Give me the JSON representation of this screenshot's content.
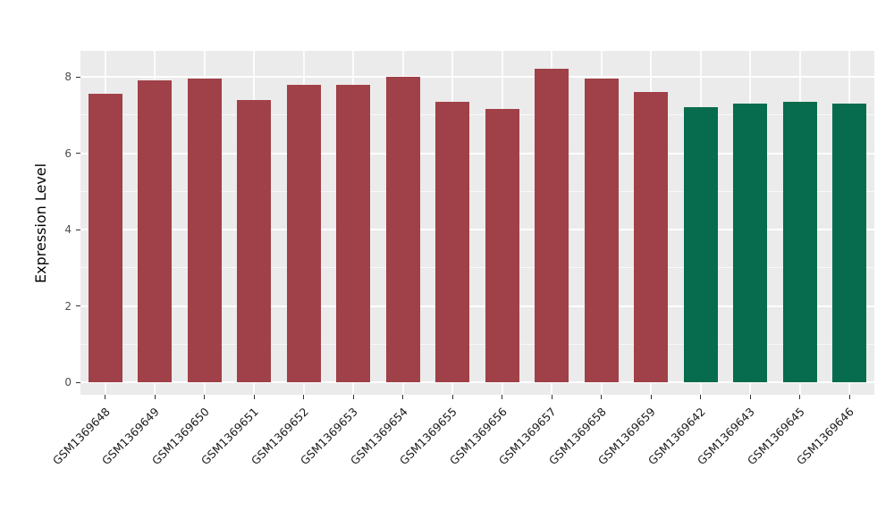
{
  "chart_data": {
    "type": "bar",
    "title": "",
    "xlabel": "",
    "ylabel": "Expression Level",
    "ylim": [
      0,
      8.7
    ],
    "yticks": [
      0,
      2,
      4,
      6,
      8
    ],
    "yticks_minor": [
      1,
      3,
      5,
      7
    ],
    "grid": "on",
    "legend_position": "none",
    "panel_background": "#EBEBEB",
    "grid_color": "#FFFFFF",
    "categories": [
      "GSM1369648",
      "GSM1369649",
      "GSM1369650",
      "GSM1369651",
      "GSM1369652",
      "GSM1369653",
      "GSM1369654",
      "GSM1369655",
      "GSM1369656",
      "GSM1369657",
      "GSM1369658",
      "GSM1369659",
      "GSM1369642",
      "GSM1369643",
      "GSM1369645",
      "GSM1369646"
    ],
    "values": [
      7.55,
      7.9,
      7.95,
      7.4,
      7.8,
      7.8,
      8.0,
      7.35,
      7.15,
      8.2,
      7.95,
      7.6,
      7.2,
      7.3,
      7.35,
      7.3
    ],
    "bar_colors": [
      "#A04048",
      "#A04048",
      "#A04048",
      "#A04048",
      "#A04048",
      "#A04048",
      "#A04048",
      "#A04048",
      "#A04048",
      "#A04048",
      "#A04048",
      "#A04048",
      "#066C4D",
      "#066C4D",
      "#066C4D",
      "#066C4D"
    ],
    "group_colors": {
      "group1": "#A04048",
      "group2": "#066C4D"
    }
  }
}
